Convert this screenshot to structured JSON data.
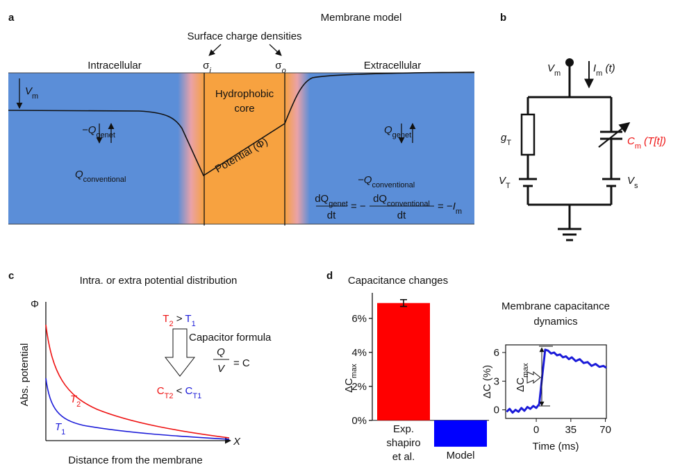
{
  "panel_a": {
    "label": "a",
    "title": "Membrane model",
    "surface": "Surface charge densities",
    "sigma_i": "σ",
    "sigma_i_sub": "i",
    "sigma_o": "σ",
    "sigma_o_sub": "o",
    "intracellular": "Intracellular",
    "extracellular": "Extracellular",
    "vm": "V",
    "vm_sub": "m",
    "core_1": "Hydrophobic",
    "core_2": "core",
    "potential": "Potential (Φ)",
    "left_top": "−Q",
    "left_top_sub": "genet",
    "left_bottom": "Q",
    "left_bottom_sub": "conventional",
    "right_top": "Q",
    "right_top_sub": "genet",
    "right_bottom": "−Q",
    "right_bottom_sub": "conventional",
    "eq": {
      "num1": "dQ",
      "num1_sub": "genet",
      "den1": "dt",
      "eq1": "= −",
      "num2": "dQ",
      "num2_sub": "conventional",
      "den2": "dt",
      "eq2": "= −",
      "i": "I",
      "i_sub": "m"
    }
  },
  "panel_b": {
    "label": "b",
    "vm": "V",
    "vm_sub": "m",
    "im": "I",
    "im_sub": "m",
    "im_t": " (t)",
    "g": "g",
    "g_sub": "T",
    "c": "C",
    "c_sub": "m",
    "c_t": " (T[t])",
    "vt": "V",
    "vt_sub": "T",
    "vs": "V",
    "vs_sub": "s"
  },
  "panel_c": {
    "label": "c",
    "title": "Intra. or extra potential distribution",
    "phi": "Φ",
    "ylabel": "Abs. potential",
    "xlabel": "Distance from the membrane",
    "x": "X",
    "t2": "T",
    "t2_sub": "2",
    "gt": " > ",
    "t1": "T",
    "t1_sub": "1",
    "formula": "Capacitor formula",
    "q": "Q",
    "v": "V",
    "eqc": "= C",
    "c1": "C",
    "c1_sub": "T2",
    "lt": " < ",
    "c2": "C",
    "c2_sub": "T1",
    "curve_t2": "T",
    "curve_t2_sub": "2",
    "curve_t1": "T",
    "curve_t1_sub": "1"
  },
  "panel_d_label": "d",
  "chart_data": [
    {
      "type": "bar",
      "title": "Capacitance changes",
      "y_label": "ΔC",
      "y_label_sub": "max",
      "categories": [
        "Exp.\nshapiro\net al.",
        "Model"
      ],
      "values": [
        6.9,
        -1.55
      ],
      "errors": [
        0.2,
        null
      ],
      "colors": [
        "#ff0000",
        "#0000ff"
      ],
      "ylim": [
        -1.6,
        7.5
      ],
      "yticks": [
        {
          "value": 0,
          "label": "0%"
        },
        {
          "value": 2,
          "label": "2%"
        },
        {
          "value": 4,
          "label": "4%"
        },
        {
          "value": 6,
          "label": "6%"
        }
      ]
    },
    {
      "type": "line",
      "title_lines": [
        "Membrane capacitance",
        "dynamics"
      ],
      "x_label": "Time (ms)",
      "y_label": "ΔC (%)",
      "annotation": "ΔC",
      "annotation_sub": "max",
      "color": "#1a1ad8",
      "x": [
        -30,
        -27,
        -24,
        -21,
        -18,
        -15,
        -12,
        -9,
        -6,
        -3,
        0,
        3,
        6,
        9,
        12,
        15,
        18,
        21,
        24,
        27,
        30,
        33,
        36,
        40,
        44,
        48,
        52,
        56,
        60,
        64,
        68,
        71
      ],
      "values": [
        -0.2,
        0.1,
        -0.3,
        0.0,
        -0.2,
        0.2,
        -0.1,
        0.3,
        0.1,
        0.4,
        0.2,
        0.6,
        3.5,
        6.3,
        6.2,
        5.9,
        6.0,
        5.7,
        5.8,
        5.5,
        5.6,
        5.3,
        5.5,
        5.1,
        5.3,
        4.9,
        5.0,
        4.6,
        4.8,
        4.5,
        4.6,
        4.4
      ],
      "xlim": [
        -31,
        71
      ],
      "ylim": [
        -0.9,
        6.8
      ],
      "xticks": [
        0,
        35,
        70
      ],
      "yticks": [
        0,
        3,
        6
      ]
    }
  ]
}
